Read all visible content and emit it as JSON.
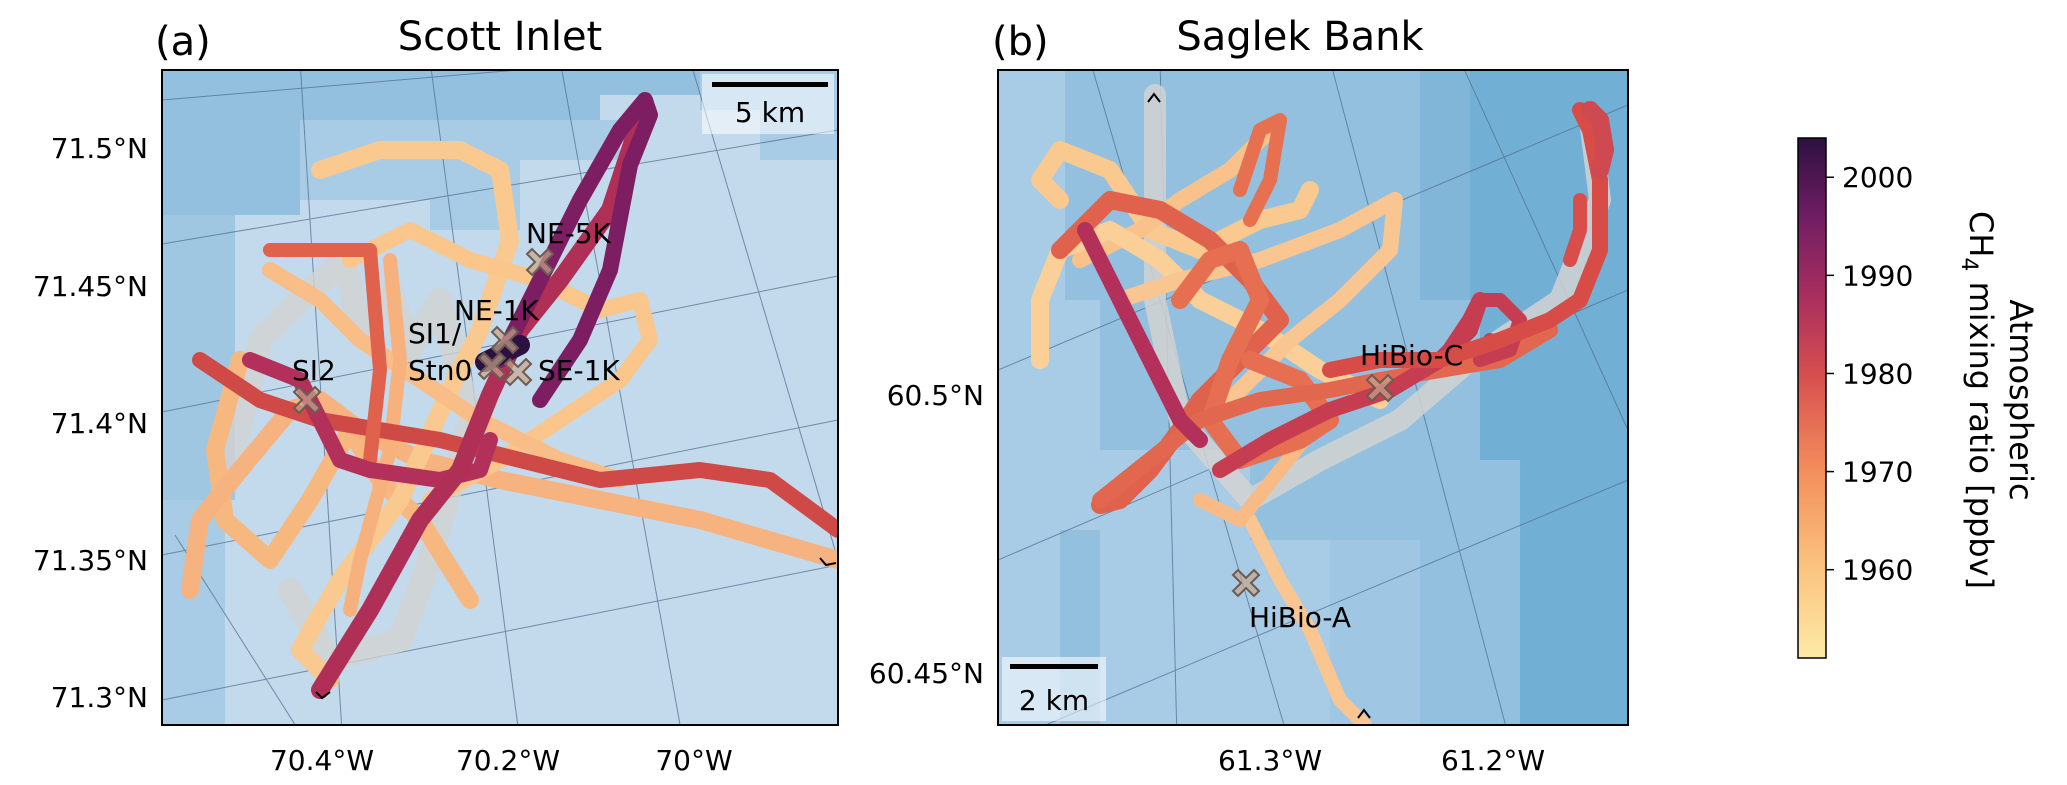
{
  "colors": {
    "sea_light": "#c3d9ec",
    "sea_mid": "#94c0df",
    "sea_dark": "#72afd4",
    "graticule": "#51718f",
    "track_halo": "#d2d2d2",
    "marker_fill": "#c9a58c",
    "marker_edge": "#6b5b53"
  },
  "panels": [
    {
      "id": "a",
      "label": "(a)",
      "title": "Scott Inlet",
      "lat_ticks": [
        "71.5°N",
        "71.45°N",
        "71.4°N",
        "71.35°N",
        "71.3°N"
      ],
      "lon_ticks": [
        "70.4°W",
        "70.2°W",
        "70°W"
      ],
      "scalebar": "5 km",
      "stations": [
        {
          "name": "NE-5K"
        },
        {
          "name": "NE-1K"
        },
        {
          "name": "SI1/",
          "name2": "Stn0"
        },
        {
          "name": "SE-1K"
        },
        {
          "name": "SI2"
        }
      ]
    },
    {
      "id": "b",
      "label": "(b)",
      "title": "Saglek Bank",
      "lat_ticks": [
        "60.5°N",
        "60.45°N"
      ],
      "lon_ticks": [
        "61.3°W",
        "61.2°W"
      ],
      "scalebar": "2 km",
      "stations": [
        {
          "name": "HiBio-C"
        },
        {
          "name": "HiBio-A"
        }
      ]
    }
  ],
  "colorbar": {
    "label_line1": "Atmospheric",
    "label_line2_pre": "CH",
    "label_line2_sub": "4",
    "label_line2_post": " mixing ratio [ppbv]",
    "ticks": [
      "2000",
      "1990",
      "1980",
      "1970",
      "1960"
    ],
    "tick_values": [
      2000,
      1990,
      1980,
      1970,
      1960
    ],
    "range": [
      1951,
      2004
    ],
    "colormap": "magma-reversed"
  }
}
